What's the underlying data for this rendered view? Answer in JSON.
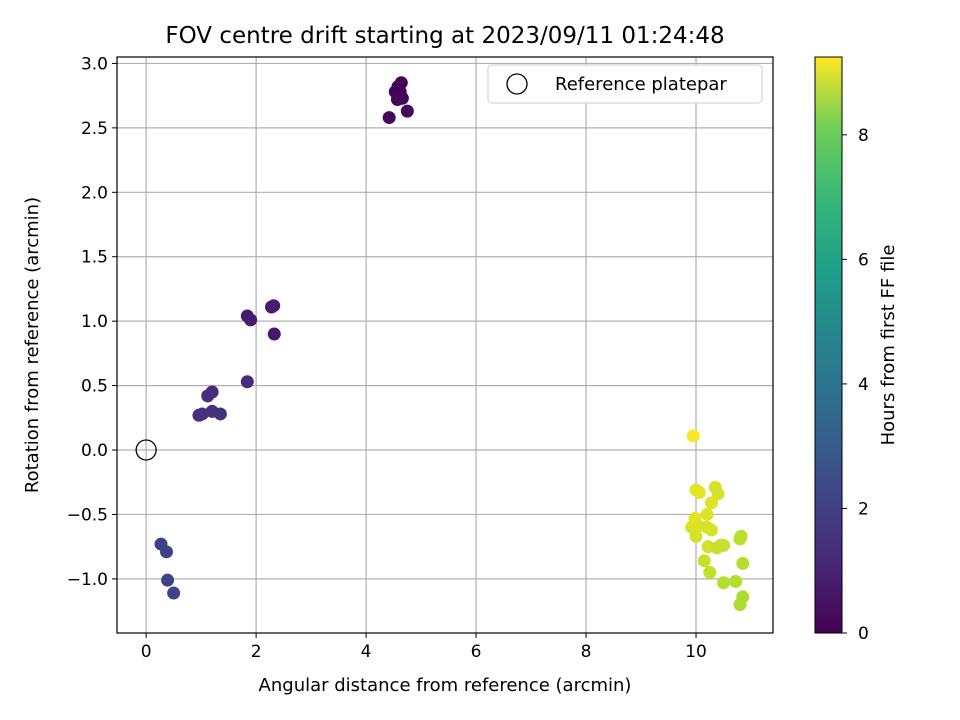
{
  "chart_data": {
    "type": "scatter",
    "title": "FOV centre drift starting at 2023/09/11 01:24:48",
    "xlabel": "Angular distance from reference (arcmin)",
    "ylabel": "Rotation from reference (arcmin)",
    "xlim": [
      -0.53,
      11.4
    ],
    "ylim": [
      -1.42,
      3.05
    ],
    "xticks": [
      0,
      2,
      4,
      6,
      8,
      10
    ],
    "yticks": [
      -1.0,
      -0.5,
      0.0,
      0.5,
      1.0,
      1.5,
      2.0,
      2.5,
      3.0
    ],
    "grid": true,
    "legend": {
      "position": "top-right",
      "label": "Reference platepar"
    },
    "reference_point": {
      "x": 0,
      "y": 0
    },
    "colorbar": {
      "label": "Hours from first FF file",
      "colormap": "viridis",
      "range": [
        0,
        9.25
      ],
      "ticks": [
        0,
        2,
        4,
        6,
        8
      ]
    },
    "points": [
      {
        "x": 4.53,
        "y": 2.78,
        "h": 0.05
      },
      {
        "x": 4.58,
        "y": 2.82,
        "h": 0.08
      },
      {
        "x": 4.64,
        "y": 2.85,
        "h": 0.06
      },
      {
        "x": 4.62,
        "y": 2.78,
        "h": 0.1
      },
      {
        "x": 4.57,
        "y": 2.72,
        "h": 0.12
      },
      {
        "x": 4.66,
        "y": 2.73,
        "h": 0.15
      },
      {
        "x": 4.42,
        "y": 2.58,
        "h": 0.2
      },
      {
        "x": 4.75,
        "y": 2.63,
        "h": 0.22
      },
      {
        "x": 1.84,
        "y": 1.04,
        "h": 0.7
      },
      {
        "x": 1.9,
        "y": 1.01,
        "h": 0.72
      },
      {
        "x": 2.28,
        "y": 1.11,
        "h": 0.68
      },
      {
        "x": 2.32,
        "y": 1.12,
        "h": 0.7
      },
      {
        "x": 2.33,
        "y": 0.9,
        "h": 0.6
      },
      {
        "x": 1.84,
        "y": 0.53,
        "h": 1.1
      },
      {
        "x": 1.2,
        "y": 0.45,
        "h": 1.2
      },
      {
        "x": 1.12,
        "y": 0.42,
        "h": 1.25
      },
      {
        "x": 0.96,
        "y": 0.27,
        "h": 1.3
      },
      {
        "x": 1.02,
        "y": 0.28,
        "h": 1.32
      },
      {
        "x": 1.2,
        "y": 0.3,
        "h": 1.3
      },
      {
        "x": 1.35,
        "y": 0.28,
        "h": 1.35
      },
      {
        "x": 0.27,
        "y": -0.73,
        "h": 1.8
      },
      {
        "x": 0.37,
        "y": -0.79,
        "h": 1.85
      },
      {
        "x": 0.39,
        "y": -1.01,
        "h": 1.85
      },
      {
        "x": 0.5,
        "y": -1.11,
        "h": 1.9
      },
      {
        "x": 9.95,
        "y": 0.11,
        "h": 9.2
      },
      {
        "x": 10.0,
        "y": -0.31,
        "h": 8.9
      },
      {
        "x": 10.06,
        "y": -0.33,
        "h": 8.9
      },
      {
        "x": 10.35,
        "y": -0.29,
        "h": 8.7
      },
      {
        "x": 10.4,
        "y": -0.34,
        "h": 8.7
      },
      {
        "x": 10.28,
        "y": -0.41,
        "h": 8.8
      },
      {
        "x": 10.2,
        "y": -0.5,
        "h": 8.8
      },
      {
        "x": 9.98,
        "y": -0.53,
        "h": 8.9
      },
      {
        "x": 9.92,
        "y": -0.6,
        "h": 8.8
      },
      {
        "x": 10.05,
        "y": -0.59,
        "h": 8.75
      },
      {
        "x": 10.2,
        "y": -0.6,
        "h": 8.7
      },
      {
        "x": 10.28,
        "y": -0.62,
        "h": 8.7
      },
      {
        "x": 10.0,
        "y": -0.67,
        "h": 8.7
      },
      {
        "x": 10.22,
        "y": -0.75,
        "h": 8.6
      },
      {
        "x": 10.38,
        "y": -0.76,
        "h": 8.5
      },
      {
        "x": 10.45,
        "y": -0.74,
        "h": 8.5
      },
      {
        "x": 10.5,
        "y": -0.74,
        "h": 8.5
      },
      {
        "x": 10.8,
        "y": -0.69,
        "h": 8.3
      },
      {
        "x": 10.82,
        "y": -0.67,
        "h": 8.3
      },
      {
        "x": 10.15,
        "y": -0.86,
        "h": 8.5
      },
      {
        "x": 10.25,
        "y": -0.95,
        "h": 8.4
      },
      {
        "x": 10.85,
        "y": -0.88,
        "h": 8.2
      },
      {
        "x": 10.5,
        "y": -1.03,
        "h": 8.2
      },
      {
        "x": 10.72,
        "y": -1.02,
        "h": 8.2
      },
      {
        "x": 10.85,
        "y": -1.14,
        "h": 8.1
      },
      {
        "x": 10.8,
        "y": -1.2,
        "h": 8.1
      }
    ]
  }
}
